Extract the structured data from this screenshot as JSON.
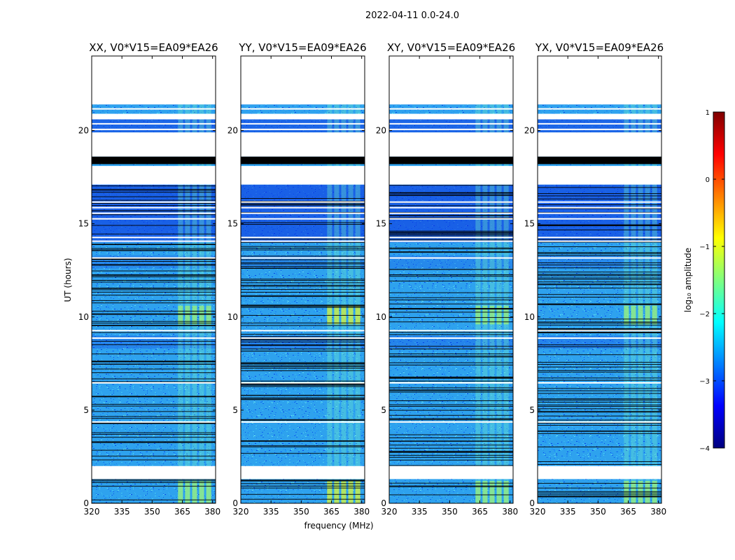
{
  "chart_data": {
    "type": "heatmap",
    "title": "2022-04-11 0.0-24.0",
    "xlabel": "frequency (MHz)",
    "ylabel": "UT (hours)",
    "xlim": [
      320,
      381.5
    ],
    "ylim": [
      0,
      24
    ],
    "xticks": [
      "320",
      "335",
      "350",
      "365",
      "380"
    ],
    "yticks": [
      "0",
      "5",
      "10",
      "15",
      "20"
    ],
    "panels": [
      {
        "title": "XX, V0*V15=EA09*EA26",
        "rfi_band": [
          362.5,
          380.0
        ]
      },
      {
        "title": "YY, V0*V15=EA09*EA26",
        "rfi_band": [
          362.5,
          380.0
        ]
      },
      {
        "title": "XY, V0*V15=EA09*EA26",
        "rfi_band": [
          362.5,
          380.0
        ]
      },
      {
        "title": "YX, V0*V15=EA09*EA26",
        "rfi_band": [
          362.5,
          380.0
        ]
      }
    ],
    "no_data_ut": [
      [
        21.4,
        24.0
      ],
      [
        20.6,
        20.9
      ],
      [
        18.6,
        19.9
      ],
      [
        17.1,
        18.1
      ],
      [
        1.3,
        2.0
      ]
    ],
    "flagged_ut": [
      [
        18.2,
        18.6
      ]
    ],
    "colorbar": {
      "label": "log₁₀ amplitude",
      "range": [
        -4,
        1
      ],
      "ticks": [
        "−4",
        "−3",
        "−2",
        "−1",
        "0",
        "1"
      ],
      "colors": [
        "#00007f",
        "#0000ff",
        "#007fff",
        "#00ffff",
        "#7fff7f",
        "#ffff00",
        "#ff7f00",
        "#ff0000",
        "#7f0000"
      ]
    }
  }
}
